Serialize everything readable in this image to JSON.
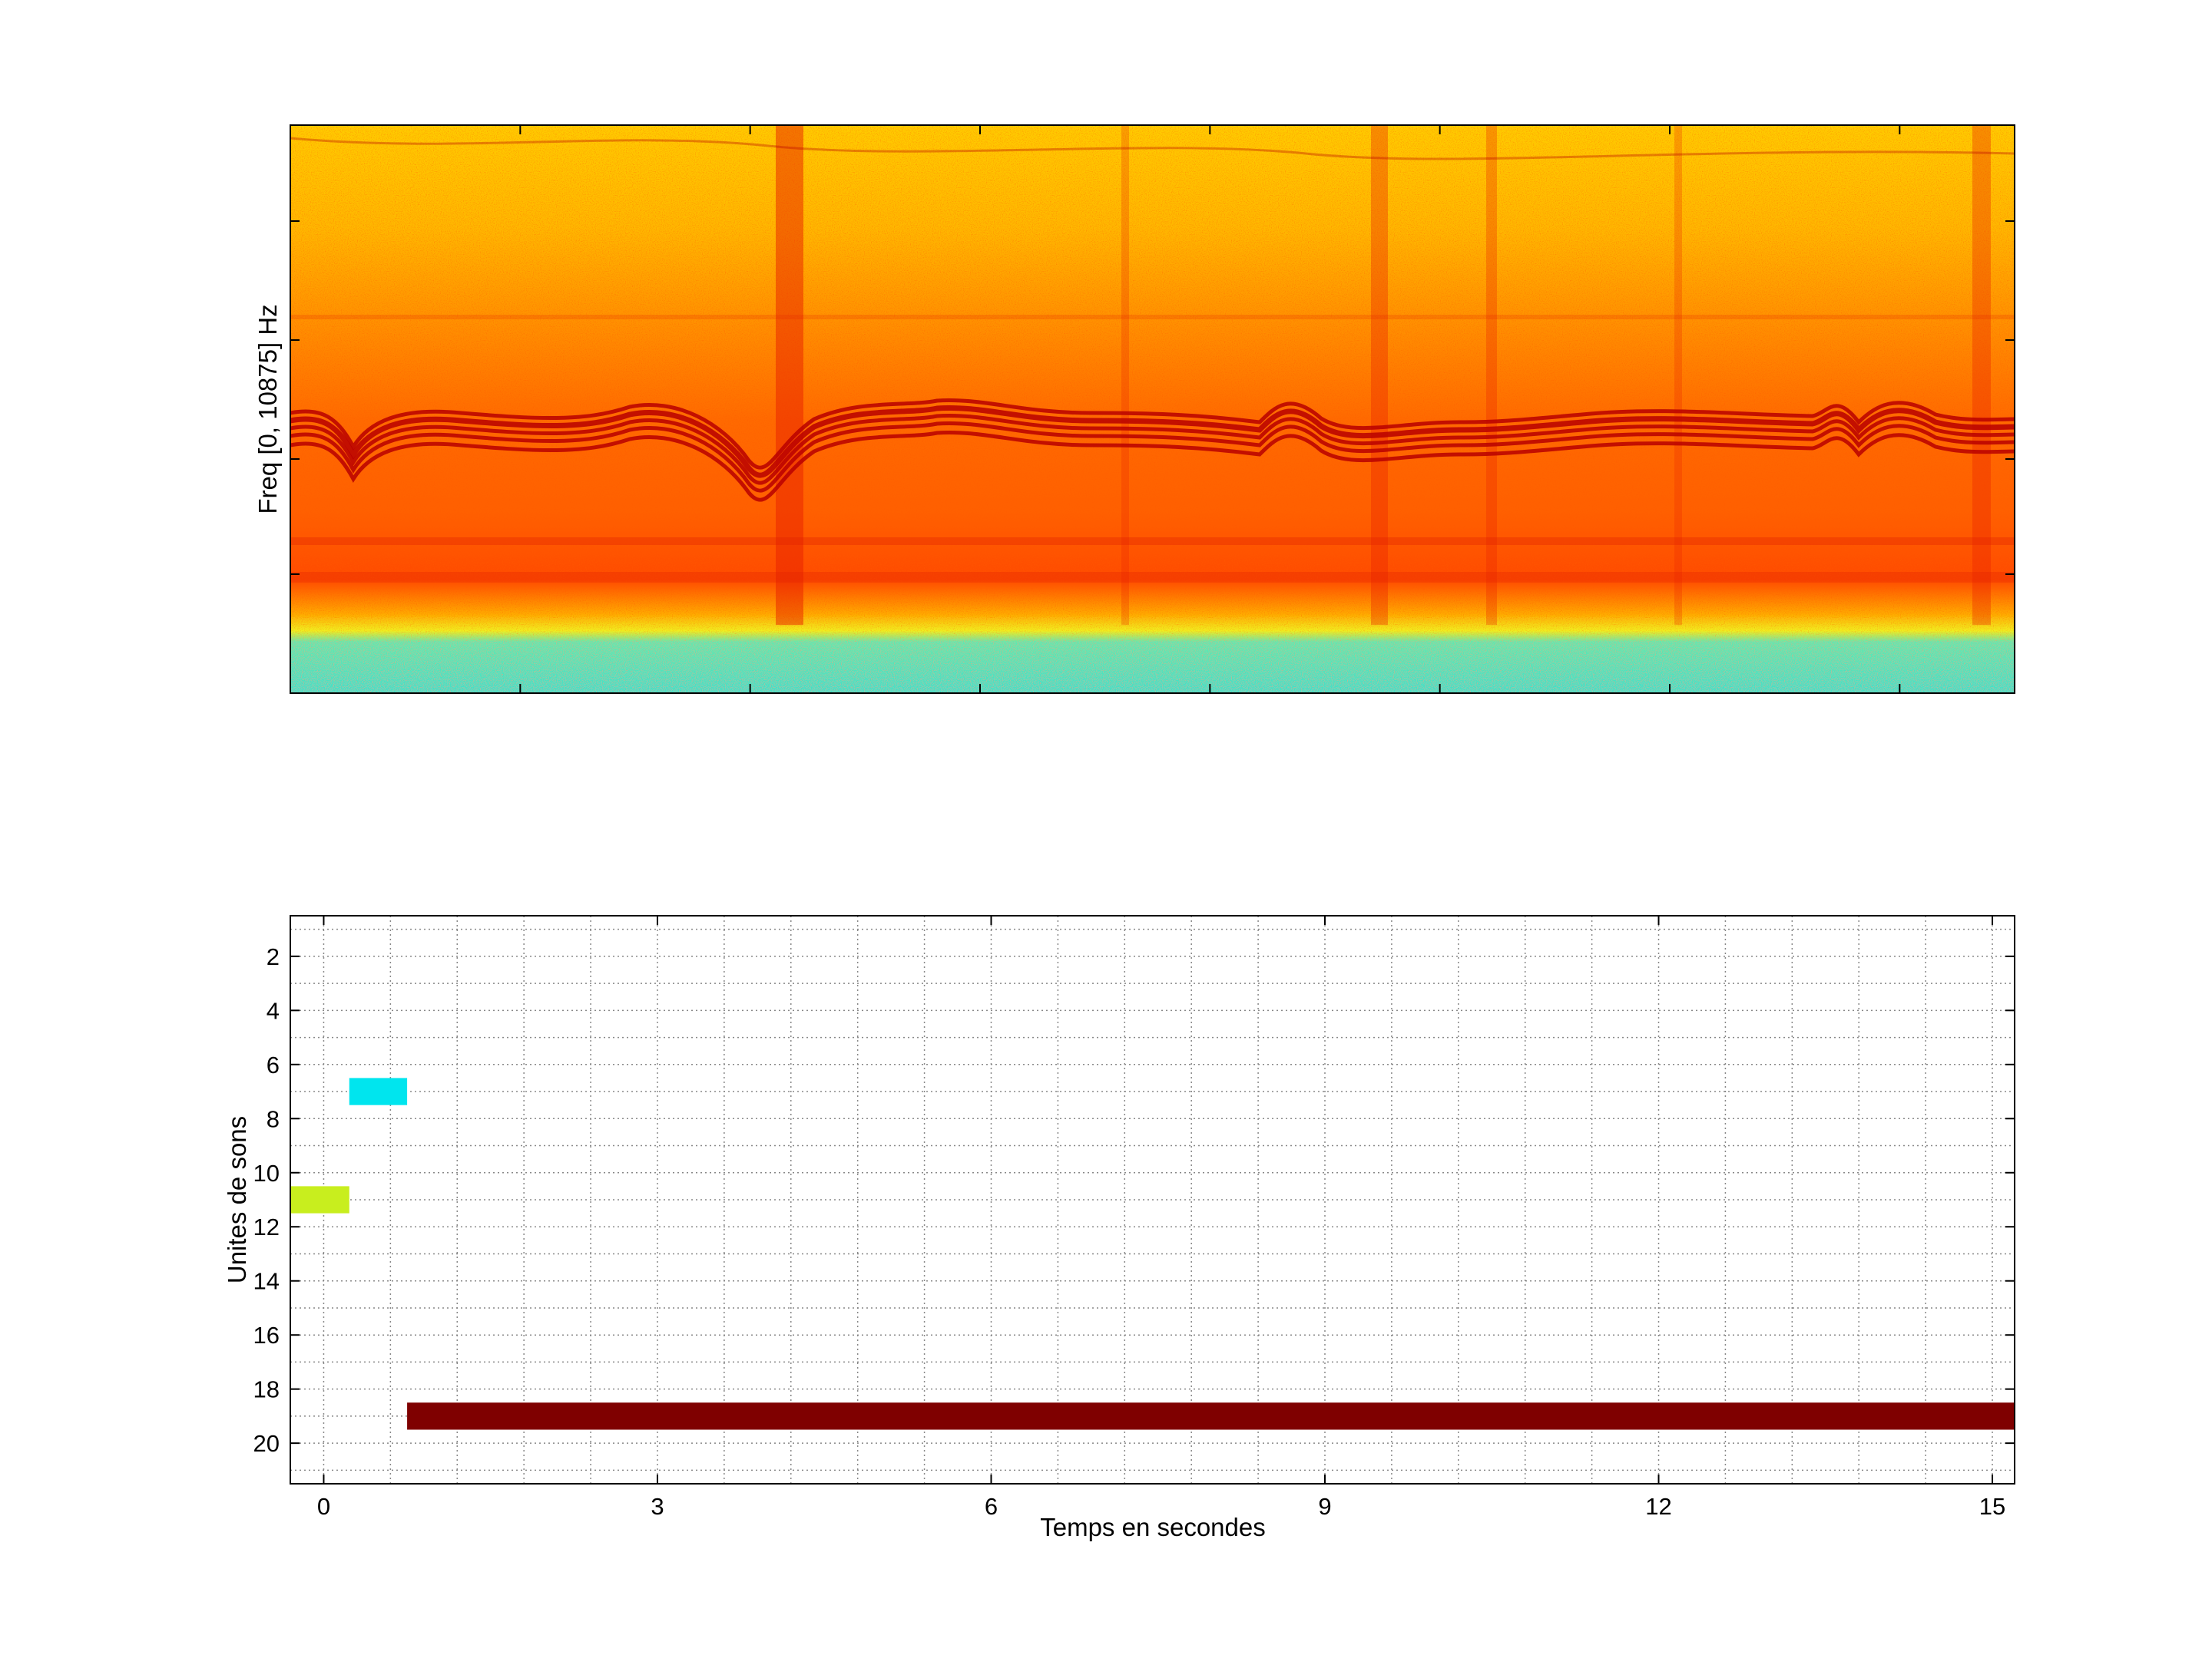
{
  "figure": {
    "background": "#ffffff"
  },
  "spectrogram": {
    "ylabel": "Freq [0, 10875] Hz",
    "colormap": "jet",
    "tracks_color": "#b80000",
    "low_band_color": "#55e6c0"
  },
  "chart_data": [
    {
      "type": "heatmap",
      "title": "",
      "xlabel": "",
      "ylabel": "Freq [0, 10875] Hz",
      "y_range_hz": [
        0,
        10875
      ],
      "colormap": "jet",
      "show_tick_labels": false
    },
    {
      "type": "bar",
      "orientation": "horizontal-segments",
      "title": "",
      "xlabel": "Temps en secondes",
      "ylabel": "Unites de sons",
      "xlim": [
        -0.3,
        15.2
      ],
      "ylim": [
        21.5,
        0.5
      ],
      "y_reversed": true,
      "grid": true,
      "x_ticks": [
        0,
        3,
        6,
        9,
        12,
        15
      ],
      "y_ticks": [
        2,
        4,
        6,
        8,
        10,
        12,
        14,
        16,
        18,
        20
      ],
      "segments": [
        {
          "unit": 7,
          "start": 0.23,
          "end": 0.75,
          "color": "#00e5ee"
        },
        {
          "unit": 11,
          "start": -0.3,
          "end": 0.23,
          "color": "#c8ee1e"
        },
        {
          "unit": 19,
          "start": 0.75,
          "end": 15.2,
          "color": "#7f0000"
        }
      ]
    }
  ]
}
